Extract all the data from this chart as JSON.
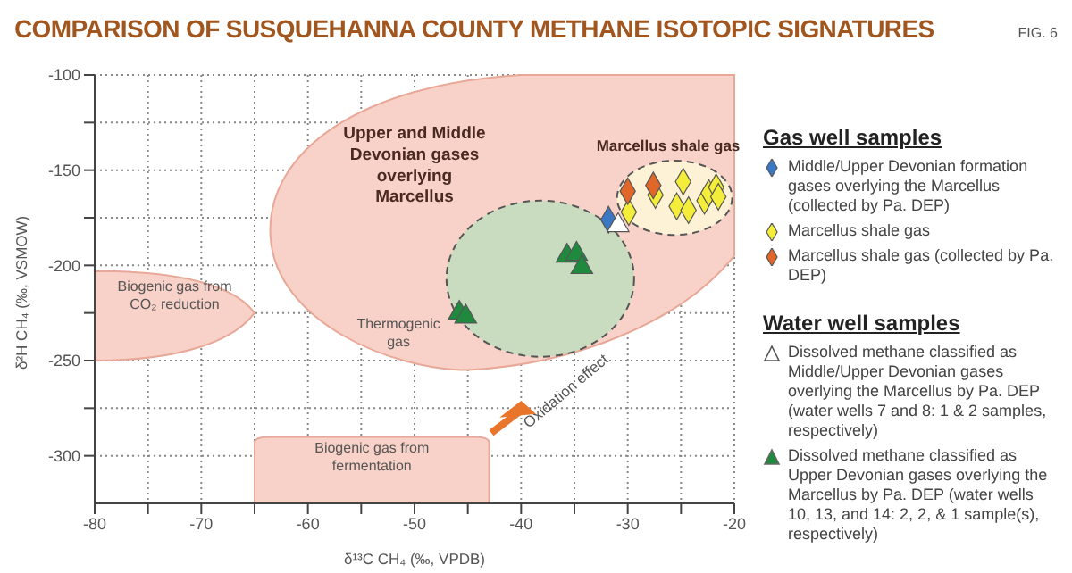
{
  "chart_data": {
    "type": "scatter",
    "title": "COMPARISON OF SUSQUEHANNA COUNTY METHANE ISOTOPIC SIGNATURES",
    "xlabel": "δ¹³C CH₄ (‰, VPDB)",
    "ylabel": "δ²H CH₄ (‰, VSMOW)",
    "xlim": [
      -80,
      -20
    ],
    "ylim": [
      -325,
      -100
    ],
    "xticks": [
      -80,
      {
        "value": -75,
        "label": null
      },
      -70,
      {
        "value": -65,
        "label": null
      },
      -60,
      {
        "value": -55,
        "label": null
      },
      -50,
      {
        "value": -45,
        "label": null
      },
      -40,
      {
        "value": -35,
        "label": null
      },
      -30,
      {
        "value": -25,
        "label": null
      },
      -20
    ],
    "yticks": [
      -100,
      {
        "value": -125,
        "label": null
      },
      -150,
      {
        "value": -175,
        "label": null
      },
      -200,
      {
        "value": -225,
        "label": null
      },
      -250,
      {
        "value": -275,
        "label": null
      },
      -300
    ],
    "grid": true,
    "legend": "right",
    "annotations": [
      "FIG. 6",
      "Upper and Middle Devonian gases overlying Marcellus",
      "Marcellus shale gas",
      "Biogenic gas from CO₂ reduction",
      "Thermogenic gas",
      "Biogenic gas from fermentation",
      "Oxidation effect",
      "Gas well samples",
      "Water well samples"
    ],
    "series": [
      {
        "name": "Middle/Upper Devonian formation gases overlying the Marcellus (collected by Pa. DEP)",
        "color": "#3b78c4",
        "marker": "diamond",
        "x": [
          -31.8
        ],
        "values": [
          -176
        ]
      },
      {
        "name": "Marcellus shale gas",
        "color": "#f4ee3a",
        "marker": "diamond",
        "x": [
          -24.8,
          -27.4,
          -29.9,
          -25.4,
          -24.3,
          -22.8,
          -22.4,
          -21.7,
          -21.5
        ],
        "values": [
          -156,
          -163,
          -172,
          -169,
          -171,
          -166,
          -162,
          -159,
          -164
        ]
      },
      {
        "name": "Marcellus shale gas (collected by Pa. DEP)",
        "color": "#e0662a",
        "marker": "diamond",
        "x": [
          -30,
          -27.6
        ],
        "values": [
          -161,
          -158
        ]
      },
      {
        "name": "Dissolved methane classified as Middle/Upper Devonian gases overlying the Marcellus by Pa. DEP (water wells 7 and 8: 1 & 2 samples, respectively)",
        "color": "#ffffff",
        "marker": "triangle",
        "x": [
          -30.9
        ],
        "values": [
          -179
        ]
      },
      {
        "name": "Dissolved methane classified as Upper Devonian gases overlying the Marcellus by Pa. DEP (water wells 10, 13, and 14: 2, 2, & 1 sample(s), respectively)",
        "color": "#1f8a3e",
        "marker": "triangle",
        "x": [
          -35.7,
          -34.8,
          -34.3,
          -45.8,
          -45.2
        ],
        "values": [
          -195,
          -194,
          -201,
          -225,
          -227
        ]
      }
    ]
  }
}
